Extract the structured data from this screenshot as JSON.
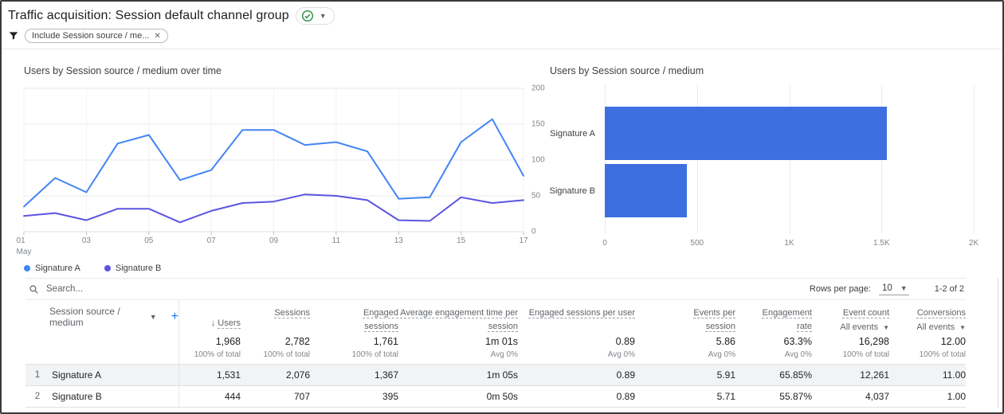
{
  "header": {
    "title": "Traffic acquisition: Session default channel group",
    "filter_chip_label": "Include Session source / me..."
  },
  "colors": {
    "series_a": "#4285F4",
    "series_b": "#5B55E0",
    "bar": "#3E6FE0",
    "link_blue": "#1a73e8",
    "check_green": "#1e8e3e"
  },
  "chart_data": [
    {
      "type": "line",
      "title": "Users by Session source / medium over time",
      "x_days": [
        1,
        2,
        3,
        4,
        5,
        6,
        7,
        8,
        9,
        10,
        11,
        12,
        13,
        14,
        15,
        16,
        17
      ],
      "xtick_labels": [
        "01",
        "03",
        "05",
        "07",
        "09",
        "11",
        "13",
        "15",
        "17"
      ],
      "x_axis_note": "May",
      "series": [
        {
          "name": "Signature A",
          "values": [
            35,
            75,
            55,
            123,
            135,
            72,
            86,
            142,
            142,
            121,
            125,
            112,
            46,
            48,
            125,
            157,
            78
          ]
        },
        {
          "name": "Signature B",
          "values": [
            22,
            26,
            16,
            32,
            32,
            13,
            29,
            40,
            42,
            52,
            50,
            44,
            16,
            15,
            48,
            40,
            44
          ]
        }
      ],
      "ylim": [
        0,
        200
      ],
      "yticks": [
        0,
        50,
        100,
        150,
        200
      ],
      "grid": "horizontal",
      "legend_position": "bottom"
    },
    {
      "type": "bar",
      "title": "Users by Session source / medium",
      "orientation": "horizontal",
      "categories": [
        "Signature A",
        "Signature B"
      ],
      "values": [
        1531,
        444
      ],
      "xlim": [
        0,
        2000
      ],
      "xticks": [
        0,
        500,
        1000,
        1500,
        2000
      ],
      "xtick_labels": [
        "0",
        "500",
        "1K",
        "1.5K",
        "2K"
      ]
    }
  ],
  "table": {
    "search_placeholder": "Search...",
    "rows_per_page_label": "Rows per page:",
    "rows_per_page_value": "10",
    "pagination_label": "1-2 of 2",
    "dimension_header": "Session source / medium",
    "columns": [
      {
        "label": "Users",
        "sorted": true
      },
      {
        "label": "Sessions"
      },
      {
        "label": "Engaged sessions"
      },
      {
        "label": "Average engagement time per session"
      },
      {
        "label": "Engaged sessions per user"
      },
      {
        "label": "Events per session"
      },
      {
        "label": "Engagement rate"
      },
      {
        "label": "Event count",
        "sub": "All events"
      },
      {
        "label": "Conversions",
        "sub": "All events"
      }
    ],
    "totals": {
      "values": [
        "1,968",
        "2,782",
        "1,761",
        "1m 01s",
        "0.89",
        "5.86",
        "63.3%",
        "16,298",
        "12.00"
      ],
      "subs": [
        "100% of total",
        "100% of total",
        "100% of total",
        "Avg 0%",
        "Avg 0%",
        "Avg 0%",
        "Avg 0%",
        "100% of total",
        "100% of total"
      ]
    },
    "rows": [
      {
        "num": "1",
        "dimension": "Signature A",
        "highlighted": true,
        "values": [
          "1,531",
          "2,076",
          "1,367",
          "1m 05s",
          "0.89",
          "5.91",
          "65.85%",
          "12,261",
          "11.00"
        ]
      },
      {
        "num": "2",
        "dimension": "Signature B",
        "highlighted": false,
        "values": [
          "444",
          "707",
          "395",
          "0m 50s",
          "0.89",
          "5.71",
          "55.87%",
          "4,037",
          "1.00"
        ]
      }
    ]
  }
}
